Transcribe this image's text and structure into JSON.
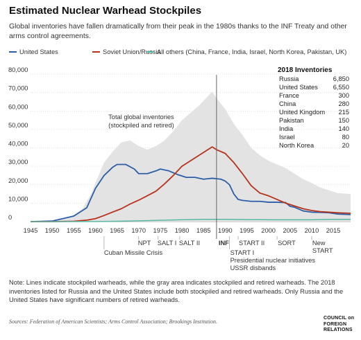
{
  "title": "Estimated Nuclear Warhead Stockpiles",
  "subtitle": "Global inventories have fallen dramatically from their peak in the 1980s thanks to the INF Treaty and other arms control agreements.",
  "legend": [
    {
      "label": "United States",
      "color": "#2b5ea7"
    },
    {
      "label": "Soviet Union/Russia",
      "color": "#b8321a"
    },
    {
      "label": "All others (China, France, India, Israel, North Korea, Pakistan, UK)",
      "color": "#57b8a5"
    }
  ],
  "note": "Note: Lines indicate stockpiled warheads, while the gray area indicates stockpiled and retired warheads. The 2018 inventories listed for Russia and the United States include both stockpiled and retired warheads. Only Russia and the United States have significant numbers of retired warheads.",
  "sources": "Sources: Federation of American Scientists; Arms Control Association; Brookings Institution.",
  "logo": [
    "COUNCIL on",
    "FOREIGN",
    "RELATIONS"
  ],
  "inventories": {
    "title": "2018 Inventories",
    "rows": [
      {
        "country": "Russia",
        "value": "6,850"
      },
      {
        "country": "United States",
        "value": "6,550"
      },
      {
        "country": "France",
        "value": "300"
      },
      {
        "country": "China",
        "value": "280"
      },
      {
        "country": "United Kingdom",
        "value": "215"
      },
      {
        "country": "Pakistan",
        "value": "150"
      },
      {
        "country": "India",
        "value": "140"
      },
      {
        "country": "Israel",
        "value": "80"
      },
      {
        "country": "North Korea",
        "value": "20"
      }
    ]
  },
  "chart_data": {
    "type": "line",
    "title": "Estimated Nuclear Warhead Stockpiles",
    "xlabel": "",
    "ylabel": "",
    "xlim": [
      1945,
      2019
    ],
    "ylim": [
      0,
      80000
    ],
    "x_ticks": [
      1945,
      1950,
      1955,
      1960,
      1965,
      1970,
      1975,
      1980,
      1985,
      1990,
      1995,
      2000,
      2005,
      2010,
      2015
    ],
    "y_ticks": [
      0,
      10000,
      20000,
      30000,
      40000,
      50000,
      60000,
      70000,
      80000
    ],
    "y_tick_labels": [
      "0",
      "10,000",
      "20,000",
      "30,000",
      "40,000",
      "50,000",
      "60,000",
      "70,000",
      "80,000"
    ],
    "grid": true,
    "legend_position": "top",
    "area": {
      "label": "Total global inventories\n(stockpiled and retired)",
      "color": "#e3e3e3",
      "x": [
        1945,
        1950,
        1953,
        1955,
        1957,
        1959,
        1960,
        1962,
        1964,
        1966,
        1968,
        1970,
        1972,
        1974,
        1976,
        1978,
        1980,
        1982,
        1984,
        1986,
        1987,
        1988,
        1990,
        1992,
        1994,
        1996,
        1998,
        2000,
        2002,
        2004,
        2006,
        2008,
        2010,
        2012,
        2014,
        2016,
        2019
      ],
      "values": [
        0,
        500,
        2000,
        3500,
        7000,
        15000,
        21000,
        32000,
        38000,
        43000,
        44000,
        41000,
        39000,
        41000,
        44000,
        49000,
        55000,
        59000,
        63000,
        68000,
        70500,
        67000,
        61000,
        53000,
        47000,
        40000,
        36000,
        33000,
        31000,
        29000,
        26000,
        23000,
        21000,
        18500,
        17000,
        15500,
        15000
      ]
    },
    "series": [
      {
        "name": "United States",
        "color": "#2b5ea7",
        "x": [
          1945,
          1950,
          1955,
          1958,
          1960,
          1962,
          1964,
          1965,
          1967,
          1969,
          1970,
          1972,
          1974,
          1975,
          1977,
          1979,
          1981,
          1983,
          1985,
          1987,
          1989,
          1990,
          1991,
          1992,
          1993,
          1994,
          1996,
          1998,
          2000,
          2002,
          2004,
          2005,
          2006,
          2008,
          2010,
          2012,
          2014,
          2016,
          2019
        ],
        "values": [
          6,
          300,
          3000,
          7500,
          18000,
          25000,
          29500,
          31000,
          31000,
          28500,
          26000,
          26000,
          27500,
          28500,
          27500,
          25500,
          24000,
          24000,
          23000,
          23500,
          23000,
          22000,
          20000,
          15000,
          12000,
          11500,
          11000,
          11000,
          10500,
          10500,
          10300,
          8300,
          7800,
          5800,
          5100,
          5000,
          4800,
          4100,
          3800
        ]
      },
      {
        "name": "Soviet Union/Russia",
        "color": "#b8321a",
        "x": [
          1945,
          1950,
          1955,
          1958,
          1960,
          1962,
          1964,
          1966,
          1968,
          1970,
          1972,
          1974,
          1976,
          1978,
          1980,
          1982,
          1984,
          1986,
          1987,
          1988,
          1990,
          1992,
          1994,
          1996,
          1998,
          2000,
          2002,
          2004,
          2006,
          2008,
          2010,
          2012,
          2014,
          2016,
          2019
        ],
        "values": [
          0,
          5,
          200,
          800,
          1600,
          3300,
          5200,
          7000,
          9500,
          11600,
          14000,
          16500,
          20500,
          25000,
          30000,
          33000,
          36000,
          39000,
          40500,
          39000,
          37000,
          32000,
          26000,
          19500,
          15500,
          14000,
          12000,
          10000,
          8500,
          7000,
          6000,
          5400,
          5100,
          4800,
          4500
        ]
      },
      {
        "name": "All others (China, France, India, Israel, North Korea, Pakistan, UK)",
        "color": "#57b8a5",
        "x": [
          1945,
          1952,
          1960,
          1965,
          1970,
          1975,
          1980,
          1985,
          1990,
          1995,
          2000,
          2005,
          2010,
          2015,
          2019
        ],
        "values": [
          0,
          0,
          50,
          200,
          400,
          700,
          1000,
          1200,
          1200,
          1100,
          1000,
          1000,
          1000,
          1200,
          1200
        ]
      }
    ],
    "reference_line": {
      "x": 1988,
      "label": "INF"
    },
    "annotations": [
      {
        "x": 1962,
        "label": "Cuban Missile Crisis"
      },
      {
        "x": 1970,
        "label": "NPT"
      },
      {
        "x": 1974.5,
        "label": "SALT I"
      },
      {
        "x": 1979.5,
        "label": "SALT II"
      },
      {
        "x": 1991,
        "label": "START I\nPresidential nuclear initiatives\nUSSR disbands"
      },
      {
        "x": 1993,
        "label": "START II"
      },
      {
        "x": 2002,
        "label": "SORT"
      },
      {
        "x": 2010,
        "label": "New\nSTART"
      }
    ]
  }
}
